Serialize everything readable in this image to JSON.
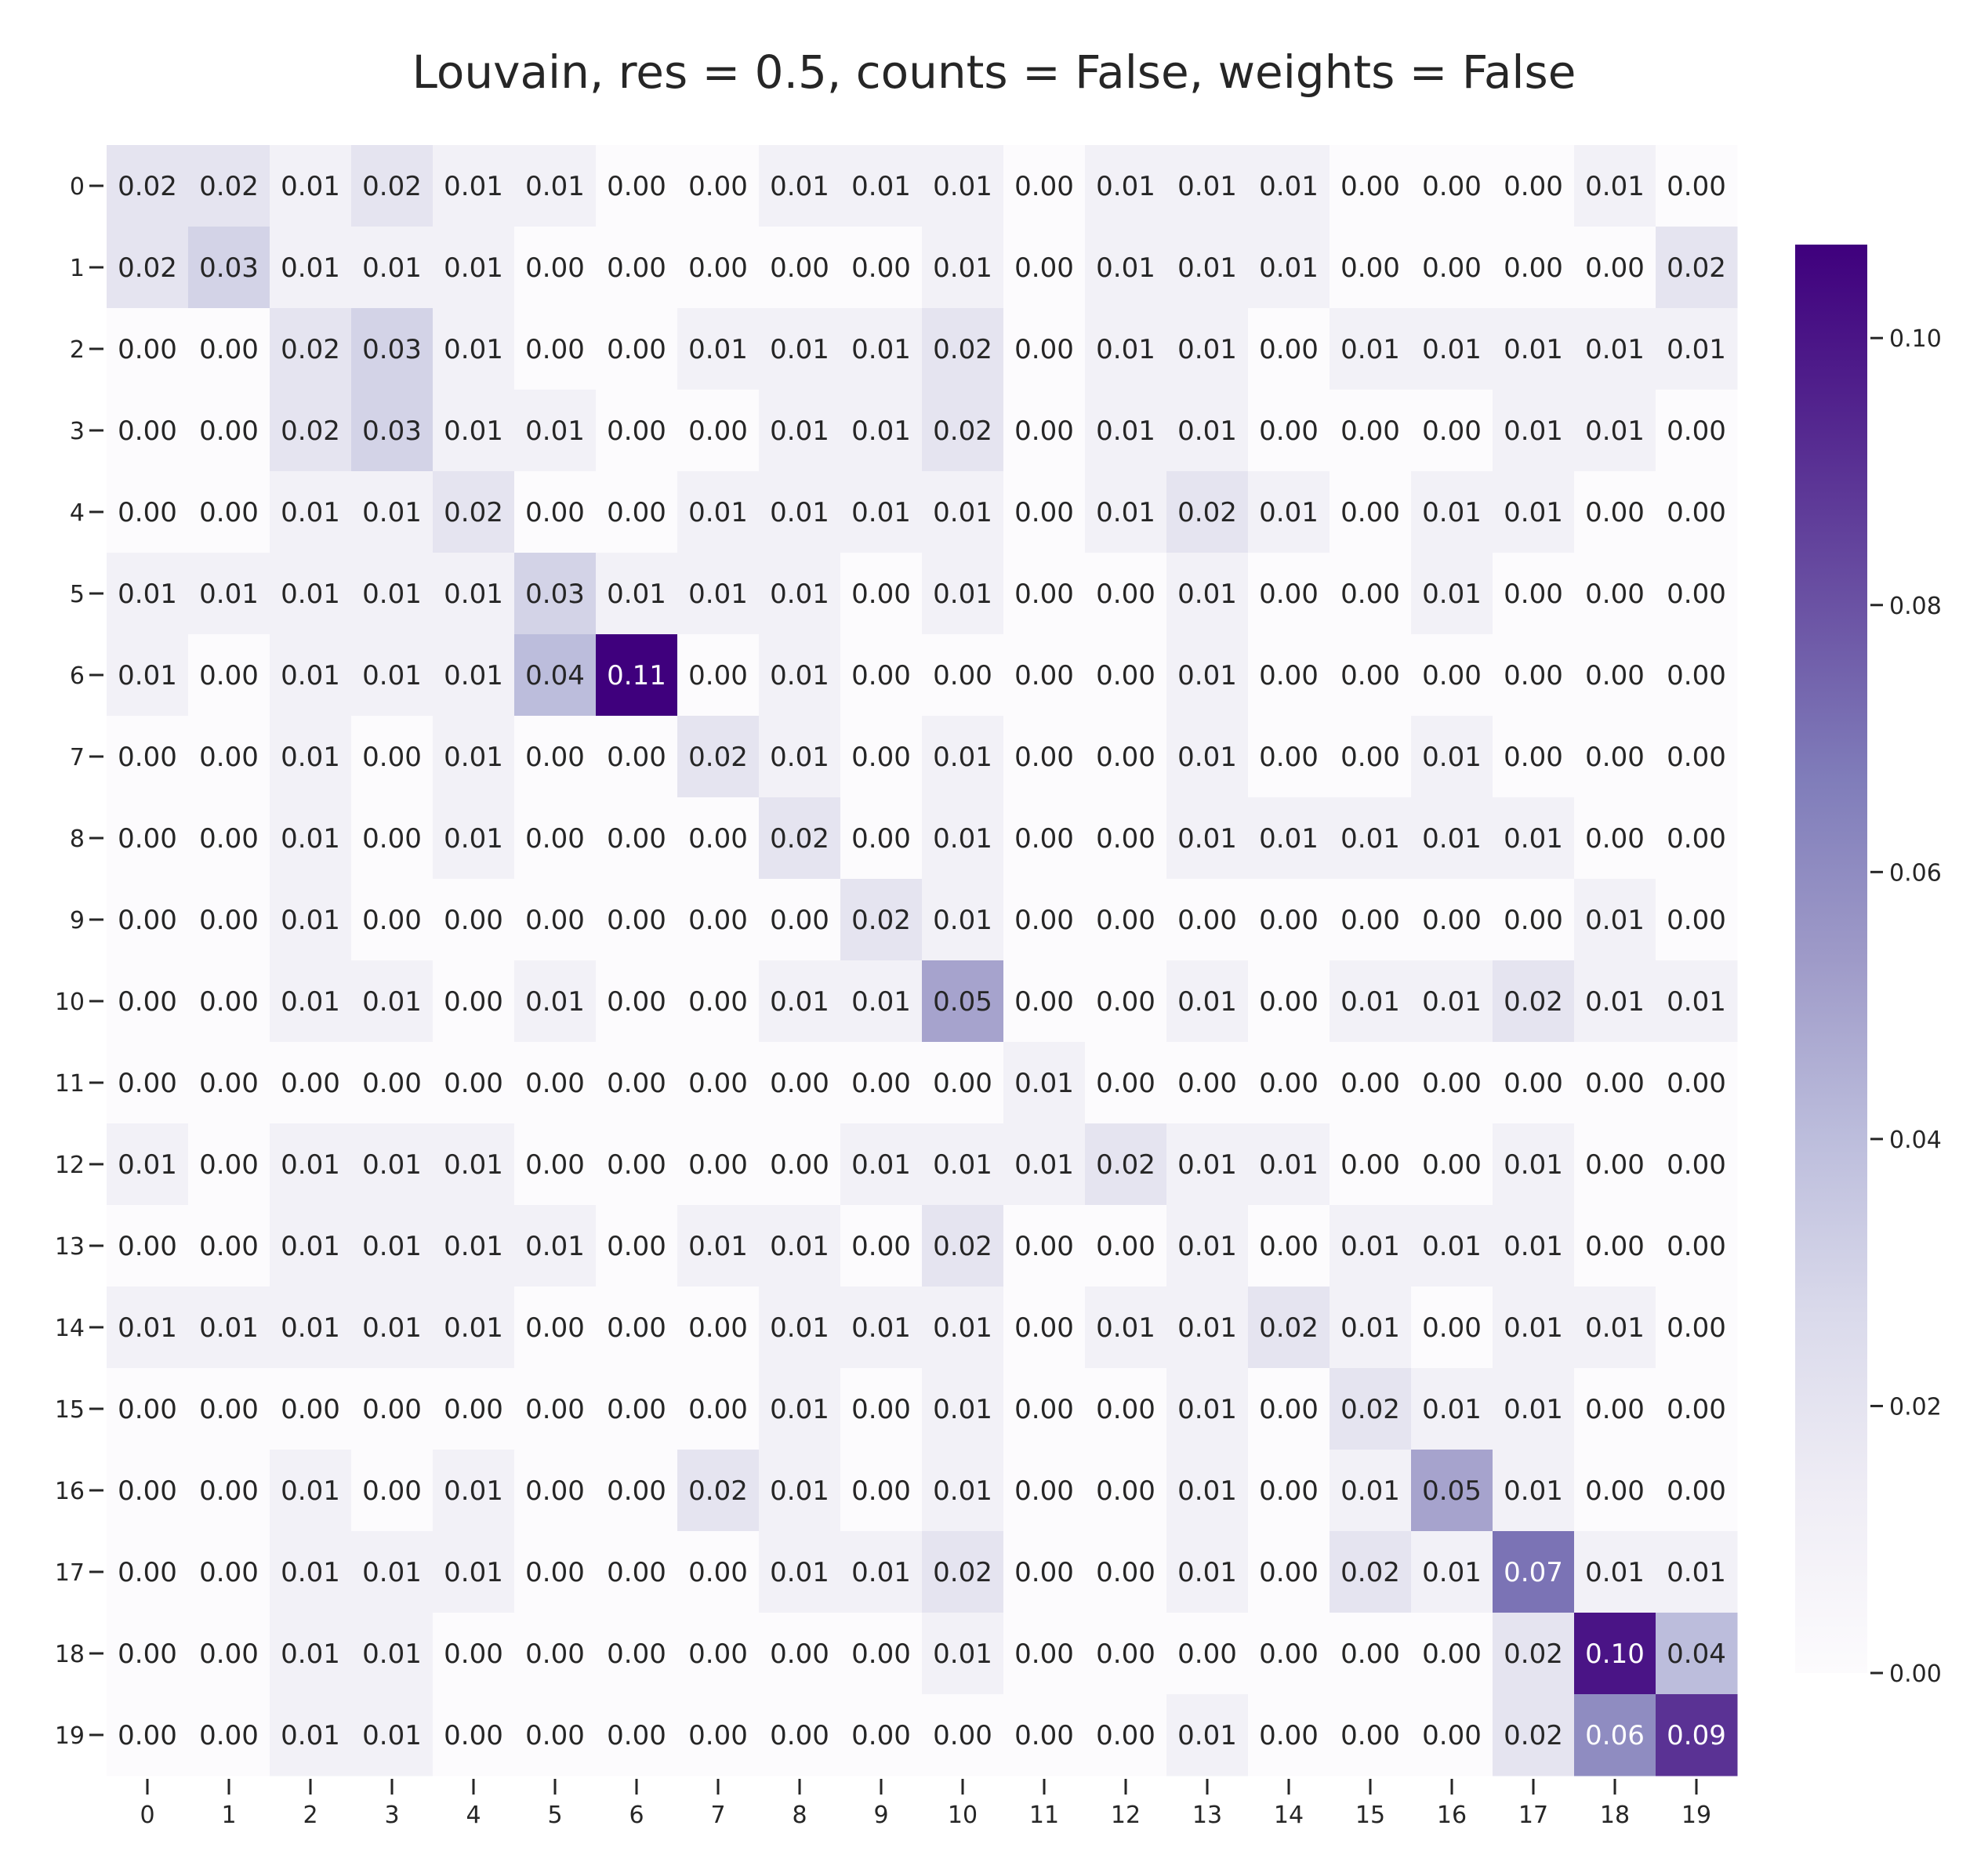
{
  "chart_data": {
    "type": "heatmap",
    "title": "Louvain, res = 0.5, counts = False, weights = False",
    "xlabel": "",
    "ylabel": "",
    "x_categories": [
      "0",
      "1",
      "2",
      "3",
      "4",
      "5",
      "6",
      "7",
      "8",
      "9",
      "10",
      "11",
      "12",
      "13",
      "14",
      "15",
      "16",
      "17",
      "18",
      "19"
    ],
    "y_categories": [
      "0",
      "1",
      "2",
      "3",
      "4",
      "5",
      "6",
      "7",
      "8",
      "9",
      "10",
      "11",
      "12",
      "13",
      "14",
      "15",
      "16",
      "17",
      "18",
      "19"
    ],
    "values": [
      [
        0.02,
        0.02,
        0.01,
        0.02,
        0.01,
        0.01,
        0.0,
        0.0,
        0.01,
        0.01,
        0.01,
        0.0,
        0.01,
        0.01,
        0.01,
        0.0,
        0.0,
        0.0,
        0.01,
        0.0
      ],
      [
        0.02,
        0.03,
        0.01,
        0.01,
        0.01,
        0.0,
        0.0,
        0.0,
        0.0,
        0.0,
        0.01,
        0.0,
        0.01,
        0.01,
        0.01,
        0.0,
        0.0,
        0.0,
        0.0,
        0.02
      ],
      [
        0.0,
        0.0,
        0.02,
        0.03,
        0.01,
        0.0,
        0.0,
        0.01,
        0.01,
        0.01,
        0.02,
        0.0,
        0.01,
        0.01,
        0.0,
        0.01,
        0.01,
        0.01,
        0.01,
        0.01
      ],
      [
        0.0,
        0.0,
        0.02,
        0.03,
        0.01,
        0.01,
        0.0,
        0.0,
        0.01,
        0.01,
        0.02,
        0.0,
        0.01,
        0.01,
        0.0,
        0.0,
        0.0,
        0.01,
        0.01,
        0.0
      ],
      [
        0.0,
        0.0,
        0.01,
        0.01,
        0.02,
        0.0,
        0.0,
        0.01,
        0.01,
        0.01,
        0.01,
        0.0,
        0.01,
        0.02,
        0.01,
        0.0,
        0.01,
        0.01,
        0.0,
        0.0
      ],
      [
        0.01,
        0.01,
        0.01,
        0.01,
        0.01,
        0.03,
        0.01,
        0.01,
        0.01,
        0.0,
        0.01,
        0.0,
        0.0,
        0.01,
        0.0,
        0.0,
        0.01,
        0.0,
        0.0,
        0.0
      ],
      [
        0.01,
        0.0,
        0.01,
        0.01,
        0.01,
        0.04,
        0.11,
        0.0,
        0.01,
        0.0,
        0.0,
        0.0,
        0.0,
        0.01,
        0.0,
        0.0,
        0.0,
        0.0,
        0.0,
        0.0
      ],
      [
        0.0,
        0.0,
        0.01,
        0.0,
        0.01,
        0.0,
        0.0,
        0.02,
        0.01,
        0.0,
        0.01,
        0.0,
        0.0,
        0.01,
        0.0,
        0.0,
        0.01,
        0.0,
        0.0,
        0.0
      ],
      [
        0.0,
        0.0,
        0.01,
        0.0,
        0.01,
        0.0,
        0.0,
        0.0,
        0.02,
        0.0,
        0.01,
        0.0,
        0.0,
        0.01,
        0.01,
        0.01,
        0.01,
        0.01,
        0.0,
        0.0
      ],
      [
        0.0,
        0.0,
        0.01,
        0.0,
        0.0,
        0.0,
        0.0,
        0.0,
        0.0,
        0.02,
        0.01,
        0.0,
        0.0,
        0.0,
        0.0,
        0.0,
        0.0,
        0.0,
        0.01,
        0.0
      ],
      [
        0.0,
        0.0,
        0.01,
        0.01,
        0.0,
        0.01,
        0.0,
        0.0,
        0.01,
        0.01,
        0.05,
        0.0,
        0.0,
        0.01,
        0.0,
        0.01,
        0.01,
        0.02,
        0.01,
        0.01
      ],
      [
        0.0,
        0.0,
        0.0,
        0.0,
        0.0,
        0.0,
        0.0,
        0.0,
        0.0,
        0.0,
        0.0,
        0.01,
        0.0,
        0.0,
        0.0,
        0.0,
        0.0,
        0.0,
        0.0,
        0.0
      ],
      [
        0.01,
        0.0,
        0.01,
        0.01,
        0.01,
        0.0,
        0.0,
        0.0,
        0.0,
        0.01,
        0.01,
        0.01,
        0.02,
        0.01,
        0.01,
        0.0,
        0.0,
        0.01,
        0.0,
        0.0
      ],
      [
        0.0,
        0.0,
        0.01,
        0.01,
        0.01,
        0.01,
        0.0,
        0.01,
        0.01,
        0.0,
        0.02,
        0.0,
        0.0,
        0.01,
        0.0,
        0.01,
        0.01,
        0.01,
        0.0,
        0.0
      ],
      [
        0.01,
        0.01,
        0.01,
        0.01,
        0.01,
        0.0,
        0.0,
        0.0,
        0.01,
        0.01,
        0.01,
        0.0,
        0.01,
        0.01,
        0.02,
        0.01,
        0.0,
        0.01,
        0.01,
        0.0
      ],
      [
        0.0,
        0.0,
        0.0,
        0.0,
        0.0,
        0.0,
        0.0,
        0.0,
        0.01,
        0.0,
        0.01,
        0.0,
        0.0,
        0.01,
        0.0,
        0.02,
        0.01,
        0.01,
        0.0,
        0.0
      ],
      [
        0.0,
        0.0,
        0.01,
        0.0,
        0.01,
        0.0,
        0.0,
        0.02,
        0.01,
        0.0,
        0.01,
        0.0,
        0.0,
        0.01,
        0.0,
        0.01,
        0.05,
        0.01,
        0.0,
        0.0
      ],
      [
        0.0,
        0.0,
        0.01,
        0.01,
        0.01,
        0.0,
        0.0,
        0.0,
        0.01,
        0.01,
        0.02,
        0.0,
        0.0,
        0.01,
        0.0,
        0.02,
        0.01,
        0.07,
        0.01,
        0.01
      ],
      [
        0.0,
        0.0,
        0.01,
        0.01,
        0.0,
        0.0,
        0.0,
        0.0,
        0.0,
        0.0,
        0.01,
        0.0,
        0.0,
        0.0,
        0.0,
        0.0,
        0.0,
        0.02,
        0.1,
        0.04
      ],
      [
        0.0,
        0.0,
        0.01,
        0.01,
        0.0,
        0.0,
        0.0,
        0.0,
        0.0,
        0.0,
        0.0,
        0.0,
        0.0,
        0.01,
        0.0,
        0.0,
        0.0,
        0.02,
        0.06,
        0.09
      ]
    ],
    "annotations_format": "0.00",
    "colorscale": "Purples",
    "color_low": "#fcfbfd",
    "color_high": "#3f007d",
    "vmin": 0.0,
    "vmax": 0.107,
    "colorbar_ticks": [
      "0.00",
      "0.02",
      "0.04",
      "0.06",
      "0.08",
      "0.10"
    ],
    "colorbar_tick_values": [
      0.0,
      0.02,
      0.04,
      0.06,
      0.08,
      0.1
    ],
    "legend_position": "right"
  }
}
